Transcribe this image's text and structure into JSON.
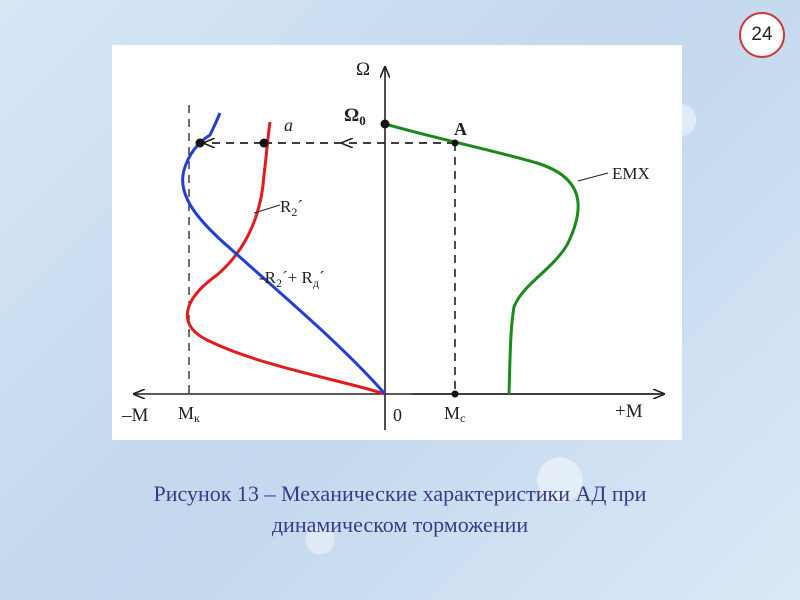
{
  "slide": {
    "number": "24"
  },
  "figure": {
    "axis_y_label": "Ω",
    "axis_x_neg_label": "–M",
    "axis_x_pos_label": "+M",
    "origin_label": "0",
    "omega0_label": "Ω",
    "omega0_sub": "0",
    "mk_label": "M",
    "mk_sub": "к",
    "mc_label": "M",
    "mc_sub": "с",
    "point_a_label": "A",
    "point_a_small_label": "a",
    "emx_label": "EMX",
    "r2_label": "R",
    "r2_sub": "2",
    "r2_prime": "´",
    "r2rd_prefix": "-R",
    "r2rd_sub": "2",
    "r2rd_mid": "´+ R",
    "r2rd_sub2": "д",
    "r2rd_prime": "´",
    "colors": {
      "emx": "#1a8a1a",
      "r2": "#e01c1c",
      "r2rd": "#1f3fd6",
      "axes": "#222222"
    }
  },
  "caption": {
    "line1": "Рисунок 13 – Механические характеристики АД при",
    "line2": "динамическом торможении"
  }
}
